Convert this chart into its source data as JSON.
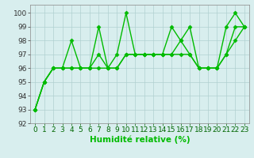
{
  "series": [
    {
      "x": [
        0,
        1,
        2,
        3,
        4,
        5,
        6,
        7,
        8,
        9,
        10,
        11,
        12,
        13,
        14,
        15,
        16,
        17,
        18,
        19,
        20,
        21,
        22,
        23
      ],
      "y": [
        93,
        95,
        96,
        96,
        98,
        96,
        96,
        99,
        96,
        97,
        100,
        97,
        97,
        97,
        97,
        99,
        98,
        99,
        96,
        96,
        96,
        99,
        100,
        99
      ]
    },
    {
      "x": [
        0,
        1,
        2,
        3,
        4,
        5,
        6,
        7,
        8,
        9,
        10,
        11,
        12,
        13,
        14,
        15,
        16,
        17,
        18,
        19,
        20,
        21,
        22,
        23
      ],
      "y": [
        93,
        95,
        96,
        96,
        96,
        96,
        96,
        97,
        96,
        96,
        97,
        97,
        97,
        97,
        97,
        97,
        98,
        97,
        96,
        96,
        96,
        97,
        99,
        99
      ]
    },
    {
      "x": [
        0,
        1,
        2,
        3,
        4,
        5,
        6,
        7,
        8,
        9,
        10,
        11,
        12,
        13,
        14,
        15,
        16,
        17,
        18,
        19,
        20,
        21,
        22,
        23
      ],
      "y": [
        93,
        95,
        96,
        96,
        96,
        96,
        96,
        96,
        96,
        96,
        97,
        97,
        97,
        97,
        97,
        97,
        97,
        97,
        96,
        96,
        96,
        97,
        98,
        99
      ]
    }
  ],
  "background_color": "#d8eeee",
  "grid_color": "#b0d0d0",
  "xlabel": "Humidité relative (%)",
  "xlim": [
    -0.5,
    23.5
  ],
  "ylim": [
    92,
    100.6
  ],
  "yticks": [
    92,
    93,
    94,
    95,
    96,
    97,
    98,
    99,
    100
  ],
  "xticks": [
    0,
    1,
    2,
    3,
    4,
    5,
    6,
    7,
    8,
    9,
    10,
    11,
    12,
    13,
    14,
    15,
    16,
    17,
    18,
    19,
    20,
    21,
    22,
    23
  ],
  "tick_fontsize": 6.5,
  "xlabel_fontsize": 7.5,
  "line_color": "#00bb00",
  "marker": "D",
  "markersize": 2.5,
  "linewidth": 1.0
}
